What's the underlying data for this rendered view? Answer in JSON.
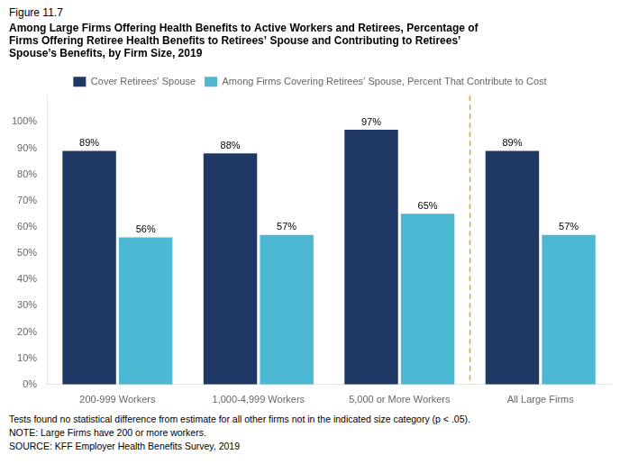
{
  "chart_data": {
    "type": "bar",
    "subtitle": "Figure 11.7",
    "title": [
      "Among Large Firms Offering Health Benefits to Active Workers and Retirees, Percentage of",
      "Firms Offering Retiree Health Benefits to Retirees’ Spouse and Contributing to Retirees’",
      "Spouse’s Benefits, by Firm Size, 2019"
    ],
    "categories": [
      "200-999 Workers",
      "1,000-4,999 Workers",
      "5,000 or More Workers",
      "All Large Firms"
    ],
    "series": [
      {
        "name": "Cover Retirees’ Spouse",
        "color": "#1f3864",
        "values": [
          89,
          88,
          97,
          89
        ],
        "value_labels": [
          "89%",
          "88%",
          "97%",
          "89%"
        ]
      },
      {
        "name": "Among Firms Covering Retirees’ Spouse, Percent That Contribute to Cost",
        "color": "#4db8d4",
        "values": [
          56,
          57,
          65,
          57
        ],
        "value_labels": [
          "56%",
          "57%",
          "65%",
          "57%"
        ]
      }
    ],
    "ylim": [
      0,
      110
    ],
    "yticks": [
      {
        "value": 0,
        "label": "0%"
      },
      {
        "value": 10,
        "label": "10%"
      },
      {
        "value": 20,
        "label": "20%"
      },
      {
        "value": 30,
        "label": "30%"
      },
      {
        "value": 40,
        "label": "40%"
      },
      {
        "value": 50,
        "label": "50%"
      },
      {
        "value": 60,
        "label": "60%"
      },
      {
        "value": 70,
        "label": "70%"
      },
      {
        "value": 80,
        "label": "80%"
      },
      {
        "value": 90,
        "label": "90%"
      },
      {
        "value": 100,
        "label": "100%"
      }
    ],
    "grid": false,
    "legend": "top",
    "data_labels": true,
    "annotations": [
      "Tests found no statistical difference from estimate for all other firms not in the indicated size category (p < .05).",
      "NOTE: Large Firms have 200 or more workers.",
      "SOURCE: KFF Employer Health Benefits Survey, 2019"
    ]
  }
}
